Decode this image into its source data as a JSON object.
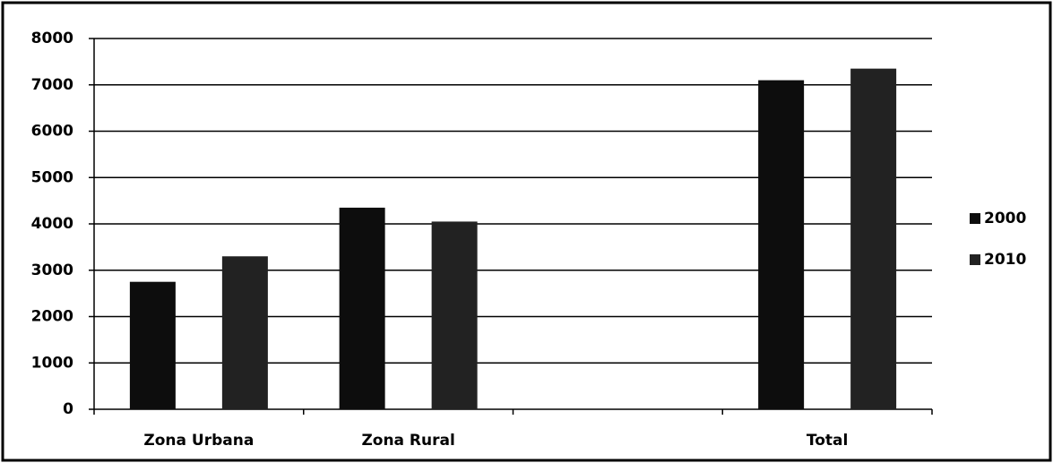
{
  "chart_data": {
    "type": "bar",
    "categories": [
      "Zona Urbana",
      "Zona Rural",
      null,
      "Total"
    ],
    "series": [
      {
        "name": "2000",
        "color": "#0d0d0d",
        "values": [
          2750,
          4350,
          null,
          7100
        ]
      },
      {
        "name": "2010",
        "color": "#222222",
        "values": [
          3300,
          4050,
          null,
          7350
        ]
      }
    ],
    "ylim": [
      0,
      8000
    ],
    "yticks": [
      0,
      1000,
      2000,
      3000,
      4000,
      5000,
      6000,
      7000,
      8000
    ],
    "grid": true,
    "legend": "right"
  }
}
